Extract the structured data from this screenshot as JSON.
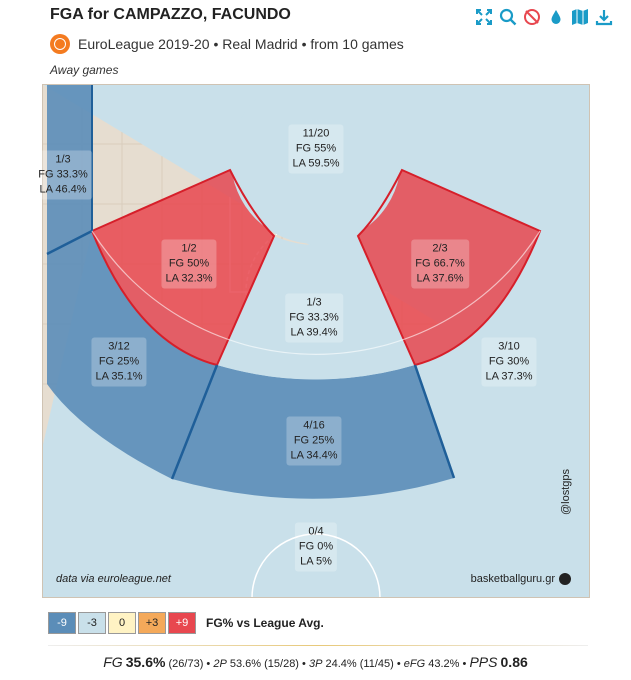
{
  "header": {
    "title": "FGA for CAMPAZZO, FACUNDO",
    "subtitle": "EuroLeague 2019-20 • Real Madrid • from 10 games",
    "filter": "Away games"
  },
  "toolbar": {
    "icons": [
      "expand-icon",
      "search-icon",
      "no-filter-icon",
      "drop-icon",
      "map-icon",
      "download-icon"
    ],
    "color": "#1a9bc7"
  },
  "zones": {
    "restricted": {
      "attempts": "11/20",
      "fg": "FG 55%",
      "la": "LA 59.5%"
    },
    "left_corner": {
      "attempts": "1/3",
      "fg": "FG 33.3%",
      "la": "LA 46.4%"
    },
    "left_mid": {
      "attempts": "1/2",
      "fg": "FG 50%",
      "la": "LA 32.3%"
    },
    "right_mid": {
      "attempts": "2/3",
      "fg": "FG 66.7%",
      "la": "LA 37.6%"
    },
    "paint": {
      "attempts": "1/3",
      "fg": "FG 33.3%",
      "la": "LA 39.4%"
    },
    "left_wing_three": {
      "attempts": "3/12",
      "fg": "FG 25%",
      "la": "LA 35.1%"
    },
    "right_wing_three": {
      "attempts": "3/10",
      "fg": "FG 30%",
      "la": "LA 37.3%"
    },
    "top_three": {
      "attempts": "4/16",
      "fg": "FG 25%",
      "la": "LA 34.4%"
    },
    "backcourt": {
      "attempts": "0/4",
      "fg": "FG 0%",
      "la": "LA 5%"
    }
  },
  "colors": {
    "much_below": "#5b8db8",
    "below": "#c9e0ea",
    "avg": "#fff3c4",
    "above": "#f4a95a",
    "much_above": "#e8474f",
    "court": "#e6ddd0"
  },
  "source": "data via euroleague.net",
  "brand": "basketballguru.gr",
  "handle": "@lostgps",
  "legend": {
    "items": [
      "-9",
      "-3",
      "0",
      "+3",
      "+9"
    ],
    "label": "FG% vs League Avg."
  },
  "stats": {
    "fg_label": "FG",
    "fg_value": "35.6%",
    "fg_detail": "(26/73)",
    "two_label": "2P",
    "two_value": "53.6% (15/28)",
    "three_label": "3P",
    "three_value": "24.4% (11/45)",
    "efg_label": "eFG",
    "efg_value": "43.2%",
    "pps_label": "PPS",
    "pps_value": "0.86"
  }
}
